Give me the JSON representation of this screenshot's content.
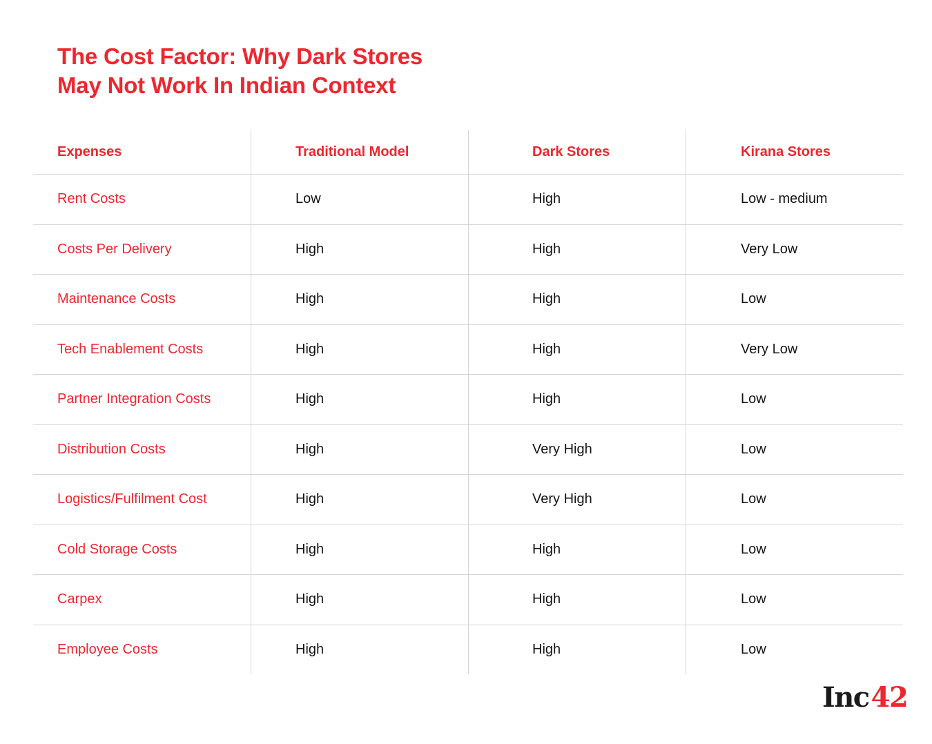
{
  "colors": {
    "accent_red": "#EC272E",
    "text_ink": "#141414",
    "grid_line": "#d6d6d6",
    "background": "#ffffff"
  },
  "title": {
    "line1": "The Cost Factor: Why Dark Stores",
    "line2": "May Not Work In Indian Context"
  },
  "chart_data": {
    "type": "table",
    "title": "The Cost Factor: Why Dark Stores May Not Work In Indian Context",
    "columns": [
      "Expenses",
      "Traditional Model",
      "Dark Stores",
      "Kirana Stores"
    ],
    "rows": [
      [
        "Rent Costs",
        "Low",
        "High",
        "Low - medium"
      ],
      [
        "Costs Per Delivery",
        "High",
        "High",
        "Very Low"
      ],
      [
        "Maintenance Costs",
        "High",
        "High",
        "Low"
      ],
      [
        "Tech Enablement Costs",
        "High",
        "High",
        "Very Low"
      ],
      [
        "Partner Integration Costs",
        "High",
        "High",
        "Low"
      ],
      [
        "Distribution Costs",
        "High",
        "Very High",
        "Low"
      ],
      [
        "Logistics/Fulfilment Cost",
        "High",
        "Very High",
        "Low"
      ],
      [
        "Cold Storage Costs",
        "High",
        "High",
        "Low"
      ],
      [
        "Carpex",
        "High",
        "High",
        "Low"
      ],
      [
        "Employee Costs",
        "High",
        "High",
        "Low"
      ]
    ],
    "legend": "none",
    "grid": "horizontal-and-vertical-separators"
  },
  "logo": {
    "part1": "Inc",
    "part2": "42"
  }
}
